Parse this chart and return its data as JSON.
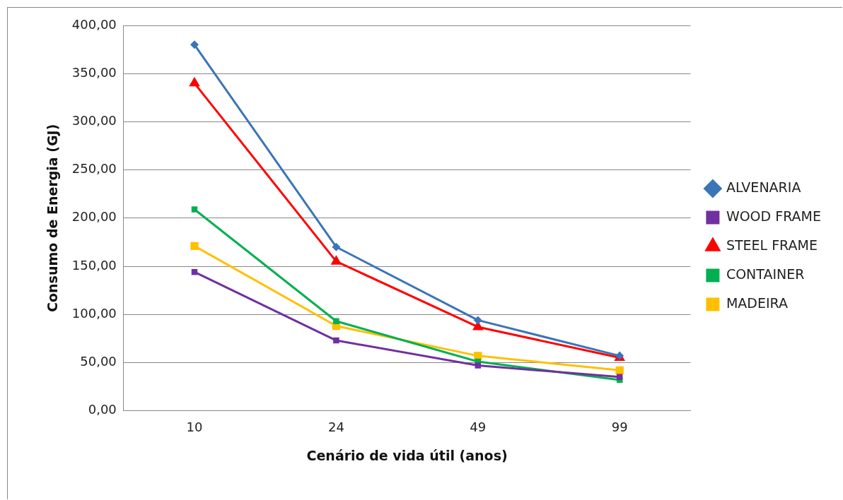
{
  "chart_data": {
    "type": "line",
    "xlabel": "Cenário de vida útil (anos)",
    "ylabel": "Consumo de Energia (GJ)",
    "categories": [
      "10",
      "24",
      "49",
      "99"
    ],
    "series": [
      {
        "name": "ALVENARIA",
        "color": "#3a75b8",
        "marker": "diamond",
        "values": [
          380,
          170,
          94,
          57
        ]
      },
      {
        "name": "WOOD FRAME",
        "color": "#7030a0",
        "marker": "square",
        "values": [
          144,
          73,
          47,
          35
        ]
      },
      {
        "name": "STEEL FRAME",
        "color": "#ff0000",
        "marker": "triangle",
        "values": [
          340,
          155,
          87,
          55
        ]
      },
      {
        "name": "CONTAINER",
        "color": "#00b050",
        "marker": "square",
        "values": [
          209,
          93,
          51,
          32
        ]
      },
      {
        "name": "MADEIRA",
        "color": "#ffc000",
        "marker": "square",
        "values": [
          171,
          88,
          57,
          42
        ]
      }
    ],
    "ylim": [
      0,
      400
    ],
    "yticks": [
      {
        "value": 0,
        "label": "0,00"
      },
      {
        "value": 50,
        "label": "50,00"
      },
      {
        "value": 100,
        "label": "100,00"
      },
      {
        "value": 150,
        "label": "150,00"
      },
      {
        "value": 200,
        "label": "200,00"
      },
      {
        "value": 250,
        "label": "250,00"
      },
      {
        "value": 300,
        "label": "300,00"
      },
      {
        "value": 350,
        "label": "350,00"
      },
      {
        "value": 400,
        "label": "400,00"
      }
    ],
    "grid": "y",
    "legend": "right",
    "line_style": "solid"
  }
}
